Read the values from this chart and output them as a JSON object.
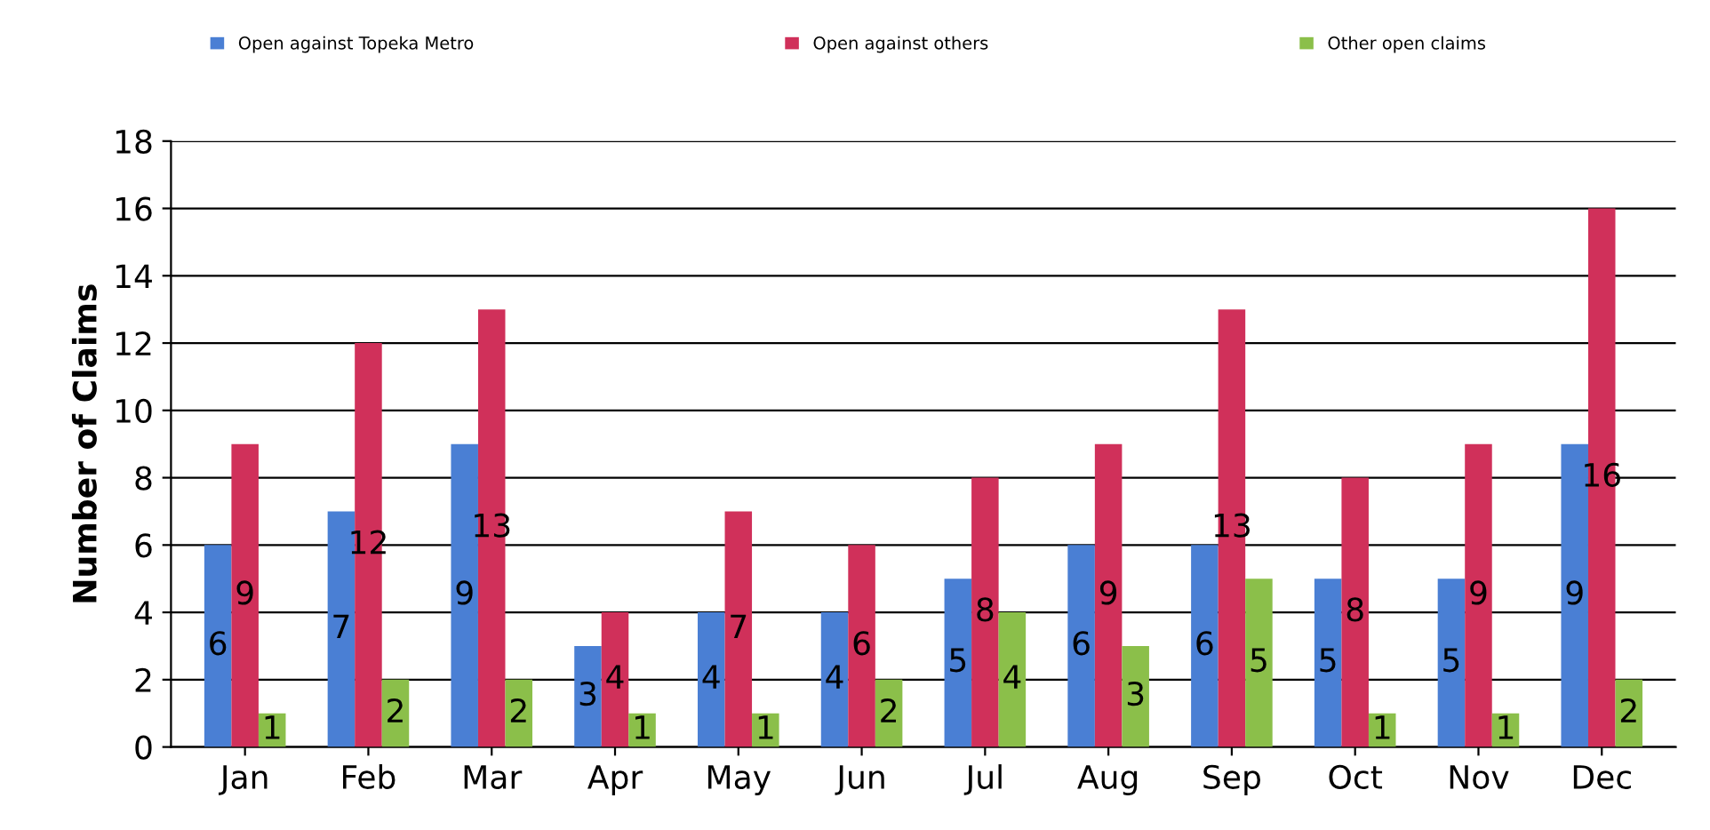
{
  "chart_data": {
    "type": "bar",
    "ylabel": "Number of Claims",
    "categories": [
      "Jan",
      "Feb",
      "Mar",
      "Apr",
      "May",
      "Jun",
      "Jul",
      "Aug",
      "Sep",
      "Oct",
      "Nov",
      "Dec"
    ],
    "series": [
      {
        "name": "Open against Topeka Metro",
        "color": "#4a7fd4",
        "values": [
          6,
          7,
          9,
          3,
          4,
          4,
          5,
          6,
          6,
          5,
          5,
          9
        ]
      },
      {
        "name": "Open against others",
        "color": "#d0305a",
        "values": [
          9,
          12,
          13,
          4,
          7,
          6,
          8,
          9,
          13,
          8,
          9,
          16
        ]
      },
      {
        "name": "Other open claims",
        "color": "#8bbf4a",
        "values": [
          1,
          2,
          2,
          1,
          1,
          2,
          4,
          3,
          5,
          1,
          1,
          2
        ]
      }
    ],
    "ylim": [
      0,
      18
    ],
    "yticks": [
      0,
      2,
      4,
      6,
      8,
      10,
      12,
      14,
      16,
      18
    ],
    "grid": "y",
    "legend": "top",
    "data_labels": true
  }
}
